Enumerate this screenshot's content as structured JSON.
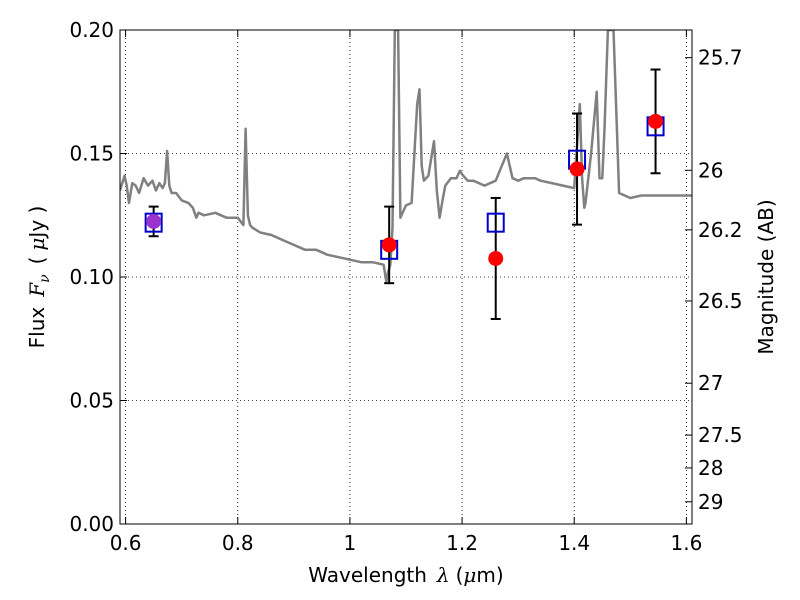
{
  "chart_data": {
    "type": "scatter",
    "xlabel": "Wavelength",
    "xlabel_symbol": "λ",
    "xlabel_unit_open": "(",
    "xlabel_unit_mu": "μ",
    "xlabel_unit_rest": "m)",
    "ylabel_left_prefix": "Flux",
    "ylabel_left_symbol": "F",
    "ylabel_left_sub": "ν",
    "ylabel_left_unit_open": "(",
    "ylabel_left_unit_mu": "μ",
    "ylabel_left_unit_rest": "Jy )",
    "ylabel_right": "Magnitude (AB)",
    "xlim": [
      0.59,
      1.61
    ],
    "ylim": [
      0.0,
      0.2
    ],
    "x_ticks": [
      0.6,
      0.8,
      1.0,
      1.2,
      1.4,
      1.6
    ],
    "x_tick_labels": [
      "0.6",
      "0.8",
      "1",
      "1.2",
      "1.4",
      "1.6"
    ],
    "y_ticks": [
      0.0,
      0.05,
      0.1,
      0.15,
      0.2
    ],
    "y_tick_labels": [
      "0.00",
      "0.05",
      "0.10",
      "0.15",
      "0.20"
    ],
    "right_ticks": [
      {
        "label": "25.7",
        "flux": 0.1888
      },
      {
        "label": "26",
        "flux": 0.1432
      },
      {
        "label": "26.2",
        "flux": 0.1191
      },
      {
        "label": "26.5",
        "flux": 0.0903
      },
      {
        "label": "27",
        "flux": 0.057
      },
      {
        "label": "27.5",
        "flux": 0.036
      },
      {
        "label": "28",
        "flux": 0.0227
      },
      {
        "label": "29",
        "flux": 0.009
      }
    ],
    "grid": true,
    "colors": {
      "model": "#808080",
      "observed": "#ff0000",
      "model_photometry": "#0000cc",
      "overlap": "#9933cc",
      "errorbar": "#000000"
    },
    "series": [
      {
        "kind": "model_spectrum",
        "x": [
          0.59,
          0.598,
          0.602,
          0.606,
          0.612,
          0.618,
          0.624,
          0.632,
          0.64,
          0.648,
          0.654,
          0.66,
          0.666,
          0.67,
          0.674,
          0.678,
          0.682,
          0.69,
          0.7,
          0.712,
          0.72,
          0.726,
          0.73,
          0.74,
          0.76,
          0.78,
          0.8,
          0.81,
          0.814,
          0.818,
          0.822,
          0.826,
          0.84,
          0.86,
          0.88,
          0.9,
          0.92,
          0.94,
          0.96,
          0.98,
          1.0,
          1.02,
          1.04,
          1.06,
          1.065,
          1.068,
          1.072,
          1.076,
          1.08,
          1.083,
          1.086,
          1.09,
          1.094,
          1.1,
          1.11,
          1.12,
          1.124,
          1.128,
          1.132,
          1.136,
          1.14,
          1.15,
          1.155,
          1.16,
          1.165,
          1.17,
          1.18,
          1.19,
          1.196,
          1.202,
          1.21,
          1.22,
          1.24,
          1.26,
          1.28,
          1.29,
          1.3,
          1.31,
          1.315,
          1.32,
          1.33,
          1.34,
          1.36,
          1.38,
          1.4,
          1.41,
          1.414,
          1.418,
          1.42,
          1.43,
          1.44,
          1.445,
          1.45,
          1.454,
          1.46,
          1.47,
          1.48,
          1.5,
          1.52,
          1.54,
          1.56,
          1.58,
          1.6,
          1.61
        ],
        "y": [
          0.135,
          0.141,
          0.137,
          0.13,
          0.138,
          0.137,
          0.134,
          0.14,
          0.137,
          0.139,
          0.135,
          0.138,
          0.136,
          0.138,
          0.151,
          0.137,
          0.134,
          0.134,
          0.131,
          0.13,
          0.128,
          0.124,
          0.126,
          0.125,
          0.126,
          0.124,
          0.124,
          0.121,
          0.16,
          0.125,
          0.121,
          0.12,
          0.118,
          0.117,
          0.115,
          0.113,
          0.111,
          0.111,
          0.109,
          0.108,
          0.107,
          0.106,
          0.106,
          0.105,
          0.098,
          0.102,
          0.105,
          0.12,
          0.2,
          0.2,
          0.2,
          0.124,
          0.126,
          0.129,
          0.13,
          0.17,
          0.176,
          0.145,
          0.139,
          0.14,
          0.141,
          0.155,
          0.135,
          0.124,
          0.131,
          0.137,
          0.14,
          0.14,
          0.143,
          0.141,
          0.139,
          0.139,
          0.137,
          0.139,
          0.15,
          0.14,
          0.139,
          0.14,
          0.14,
          0.14,
          0.14,
          0.139,
          0.138,
          0.137,
          0.136,
          0.17,
          0.14,
          0.128,
          0.13,
          0.15,
          0.175,
          0.14,
          0.14,
          0.16,
          0.2,
          0.2,
          0.134,
          0.132,
          0.133,
          0.133,
          0.133,
          0.133,
          0.133,
          0.133
        ]
      },
      {
        "kind": "observed_photometry",
        "x": [
          0.65,
          1.07,
          1.26,
          1.405,
          1.545
        ],
        "y": [
          0.1225,
          0.113,
          0.1075,
          0.1437,
          0.163
        ],
        "yerr": [
          0.006,
          0.0155,
          0.0245,
          0.0225,
          0.021
        ]
      },
      {
        "kind": "model_photometry",
        "x": [
          0.65,
          1.07,
          1.26,
          1.405,
          1.545
        ],
        "y": [
          0.122,
          0.111,
          0.122,
          0.1475,
          0.161
        ]
      }
    ]
  }
}
